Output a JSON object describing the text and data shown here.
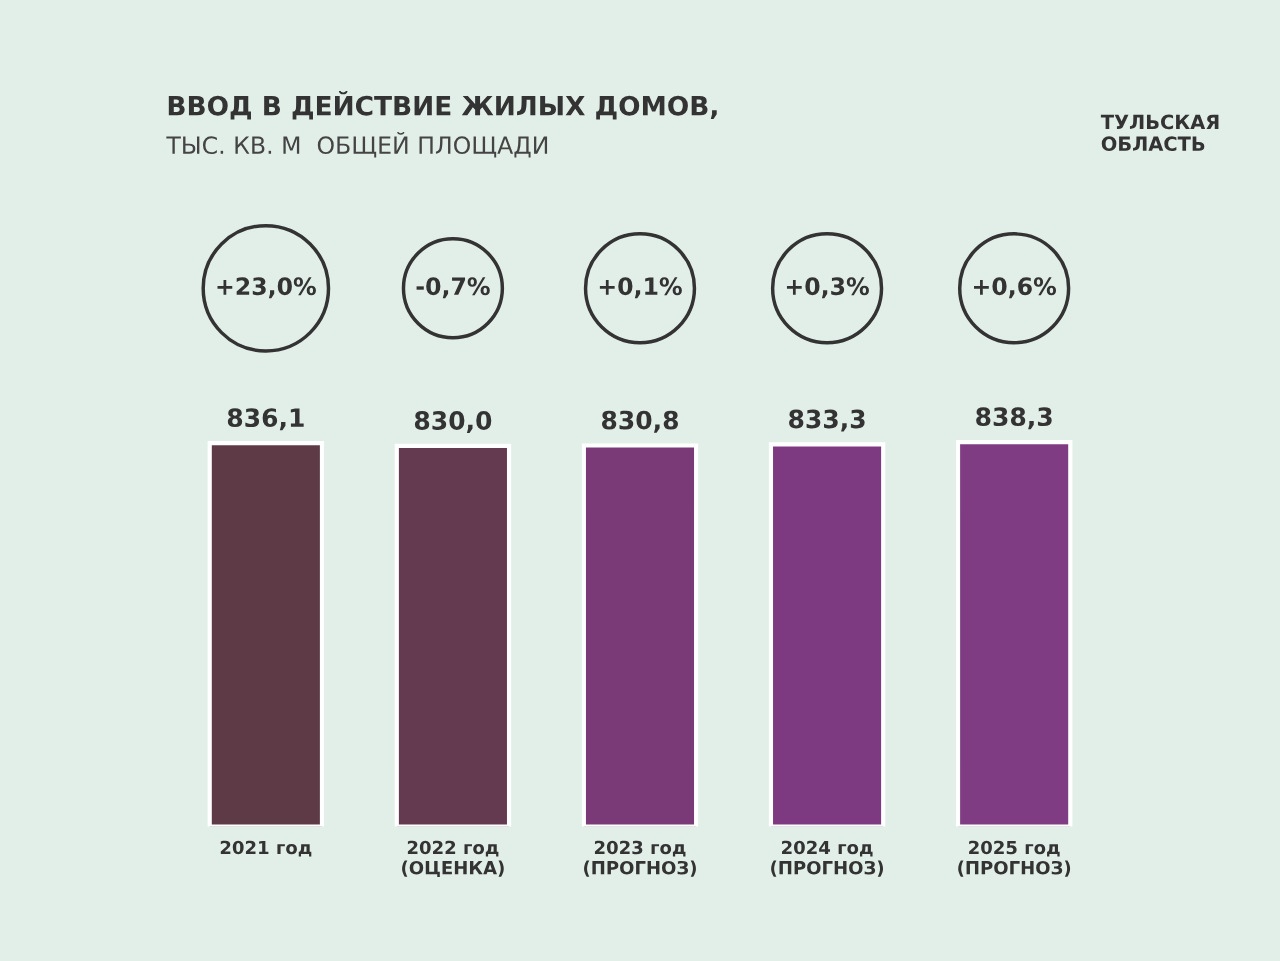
{
  "chart_data": {
    "type": "bar",
    "title": "ВВОД В ДЕЙСТВИЕ ЖИЛЫХ ДОМОВ,",
    "subtitle": "ТЫС. КВ. М  ОБЩЕЙ ПЛОЩАДИ",
    "categories": [
      "2021 год",
      "2022 год\n(ОЦЕНКА)",
      "2023 год\n(ПРОГНОЗ)",
      "2024 год\n(ПРОГНОЗ)",
      "2025 год\n(ПРОГНОЗ)"
    ],
    "values": [
      836.1,
      830.0,
      830.8,
      833.3,
      838.3
    ],
    "value_labels": [
      "836,1",
      "830,0",
      "830,8",
      "833,3",
      "838,3"
    ],
    "colors": [
      "#5e3a46",
      "#643a50",
      "#7a3a78",
      "#7e3a80",
      "#7f3c82"
    ],
    "tick_labels": "x",
    "grid": false,
    "legend": false,
    "annotations": [
      "+23,0%",
      "-0,7%",
      "+0,1%",
      "+0,3%",
      "+0,6%",
      "ТУЛЬСКАЯ\nОБЛАСТЬ"
    ]
  }
}
